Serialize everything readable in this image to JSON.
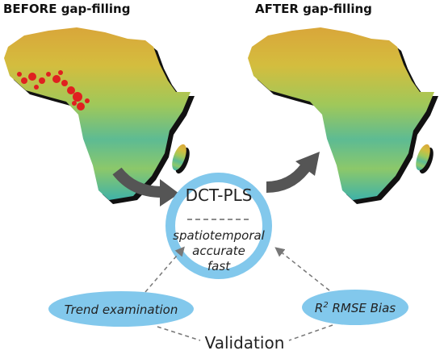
{
  "before_title": "BEFORE gap-filling",
  "after_title": "AFTER gap-filling",
  "method": {
    "name": "DCT-PLS",
    "properties": [
      "spatiotemporal",
      "accurate",
      "fast"
    ]
  },
  "trend": "Trend examination",
  "metrics": {
    "r": "R",
    "sup": "2",
    "rest": " RMSE Bias"
  },
  "validation": "Validation"
}
